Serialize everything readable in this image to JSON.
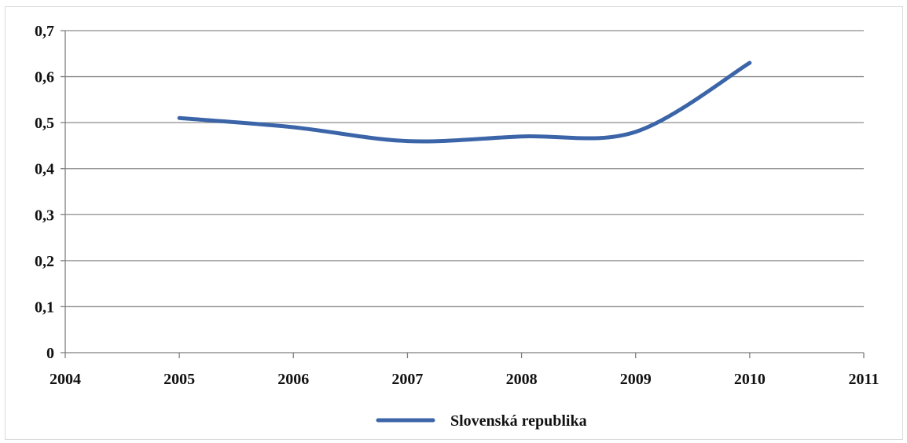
{
  "chart_data": {
    "type": "line",
    "title": "",
    "xlabel": "",
    "ylabel": "",
    "xlim": [
      2004,
      2011
    ],
    "ylim": [
      0,
      0.7
    ],
    "x_ticks": [
      2004,
      2005,
      2006,
      2007,
      2008,
      2009,
      2010,
      2011
    ],
    "x_tick_labels": [
      "2004",
      "2005",
      "2006",
      "2007",
      "2008",
      "2009",
      "2010",
      "2011"
    ],
    "y_ticks": [
      0,
      0.1,
      0.2,
      0.3,
      0.4,
      0.5,
      0.6,
      0.7
    ],
    "y_tick_labels": [
      "0",
      "0,1",
      "0,2",
      "0,3",
      "0,4",
      "0,5",
      "0,6",
      "0,7"
    ],
    "grid": "horizontal",
    "smooth": true,
    "legend_position": "bottom",
    "series": [
      {
        "name": "Slovenská republika",
        "color": "#3b65a8",
        "x": [
          2005,
          2006,
          2007,
          2008,
          2009,
          2010
        ],
        "values": [
          0.51,
          0.49,
          0.46,
          0.47,
          0.48,
          0.63
        ]
      }
    ]
  }
}
